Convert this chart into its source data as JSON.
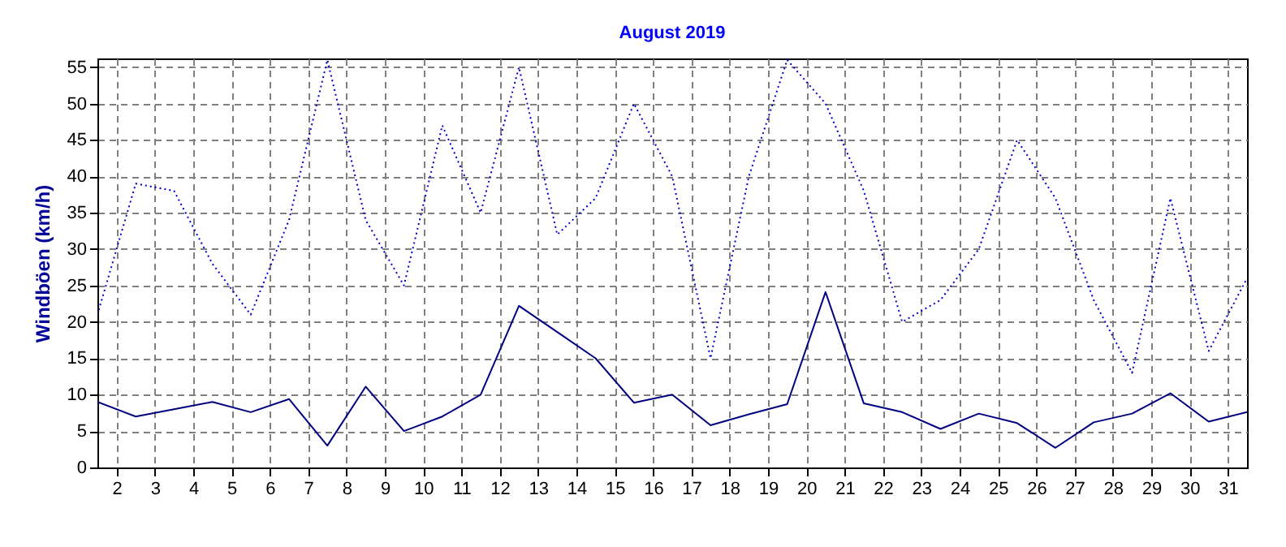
{
  "chart_data": {
    "type": "line",
    "title": "August 2019",
    "ylabel": "Windböen (km/h)",
    "x": [
      1.5,
      2.5,
      3.5,
      4.5,
      5.5,
      6.5,
      7.5,
      8.5,
      9.5,
      10.5,
      11.5,
      12.5,
      13.5,
      14.5,
      15.5,
      16.5,
      17.5,
      18.5,
      19.5,
      20.5,
      21.5,
      22.5,
      23.5,
      24.5,
      25.5,
      26.5,
      27.5,
      28.5,
      29.5,
      30.5,
      31.5
    ],
    "series": [
      {
        "color": "#0000cc",
        "line_style": "dotted",
        "values": [
          21,
          39,
          38,
          28,
          21,
          34,
          56,
          34,
          25,
          47,
          35,
          55,
          32,
          37,
          50,
          40,
          15,
          40,
          56,
          50,
          38,
          20,
          23,
          30,
          45,
          37,
          23,
          13,
          37,
          16,
          26
        ]
      },
      {
        "color": "#000080",
        "line_style": "solid",
        "values": [
          9,
          7,
          8,
          9,
          7.6,
          9.4,
          3,
          11.1,
          5,
          7,
          10,
          22.2,
          18.6,
          15,
          8.9,
          10,
          5.8,
          7.3,
          8.7,
          24.1,
          8.8,
          7.6,
          5.3,
          7.4,
          6.1,
          2.7,
          6.2,
          7.4,
          10.2,
          6.3,
          7.6
        ]
      }
    ],
    "xlim": [
      1.5,
      31.5
    ],
    "xticks": [
      2,
      3,
      4,
      5,
      6,
      7,
      8,
      9,
      10,
      11,
      12,
      13,
      14,
      15,
      16,
      17,
      18,
      19,
      20,
      21,
      22,
      23,
      24,
      25,
      26,
      27,
      28,
      29,
      30,
      31
    ],
    "ylim": [
      0,
      56.2
    ],
    "yticks": [
      0,
      5,
      10,
      15,
      20,
      25,
      30,
      35,
      40,
      45,
      50,
      55
    ],
    "grid": true
  }
}
